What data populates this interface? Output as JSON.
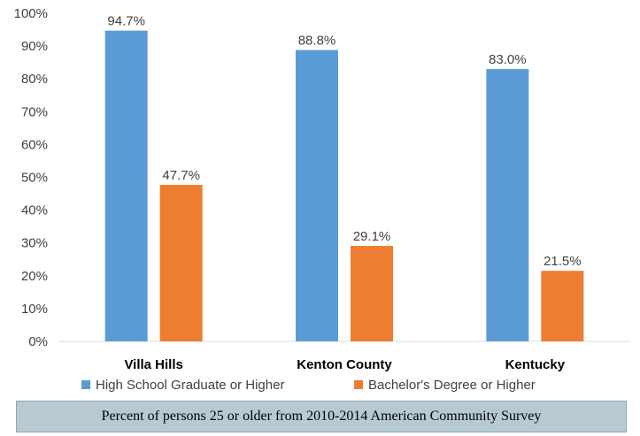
{
  "chart_data": {
    "type": "bar",
    "categories": [
      "Villa Hills",
      "Kenton County",
      "Kentucky"
    ],
    "series": [
      {
        "name": "High School Graduate or Higher",
        "values": [
          94.7,
          88.8,
          83.0
        ],
        "labels": [
          "94.7%",
          "88.8%",
          "83.0%"
        ],
        "color": "#5b9bd5"
      },
      {
        "name": "Bachelor's Degree or Higher",
        "values": [
          47.7,
          29.1,
          21.5
        ],
        "labels": [
          "47.7%",
          "29.1%",
          "21.5%"
        ],
        "color": "#ed7d31"
      }
    ],
    "ylim": [
      0,
      100
    ],
    "yticks": [
      "0%",
      "10%",
      "20%",
      "30%",
      "40%",
      "50%",
      "60%",
      "70%",
      "80%",
      "90%",
      "100%"
    ],
    "grid": false,
    "legend_position": "bottom",
    "caption": "Percent of persons 25 or older from 2010-2014 American Community Survey"
  }
}
